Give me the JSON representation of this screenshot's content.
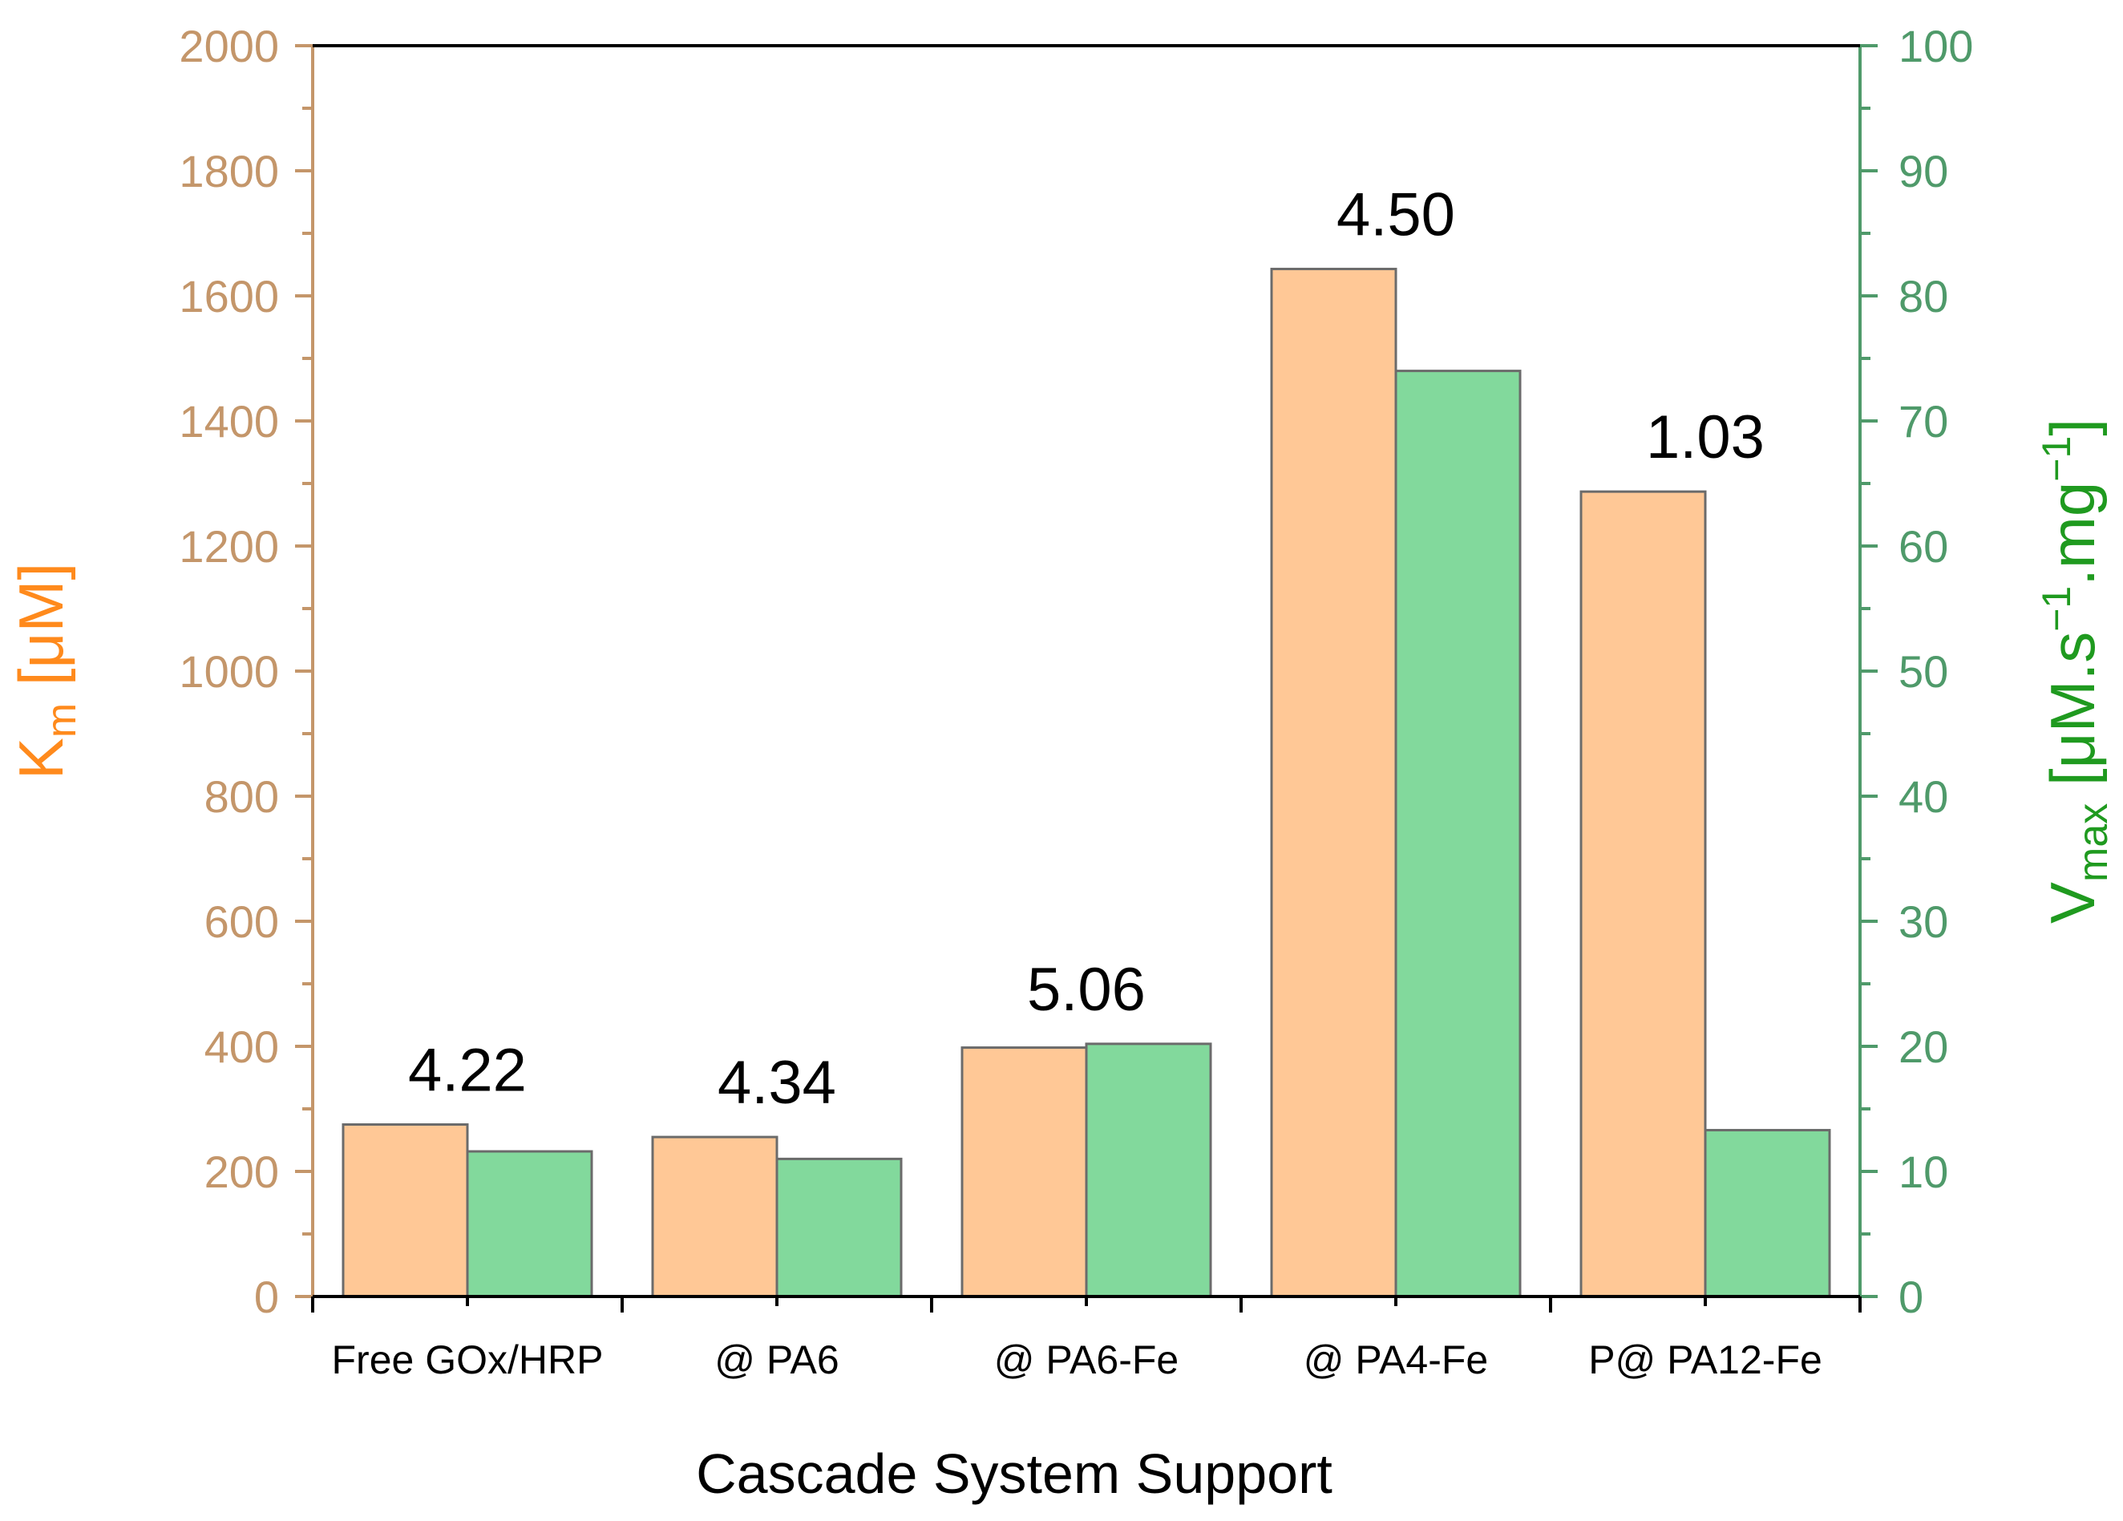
{
  "chart_data": {
    "type": "bar",
    "categories": [
      "Free GOx/HRP",
      "@ PA6",
      "@ PA6-Fe",
      "@ PA4-Fe",
      "P@ PA12-Fe"
    ],
    "series": [
      {
        "name": "Km",
        "axis": "left",
        "color": "#ffc896",
        "values": [
          275,
          255,
          398,
          1643,
          1287
        ]
      },
      {
        "name": "Vmax",
        "axis": "right",
        "color": "#82d99c",
        "values": [
          11.6,
          11.0,
          20.2,
          74.0,
          13.3
        ]
      }
    ],
    "annotations": [
      "4.22",
      "4.34",
      "5.06",
      "4.50",
      "1.03"
    ],
    "xlabel": "Cascade System Support",
    "ylabel_left": {
      "main": "K",
      "sub": "m",
      "rest": " [μM]"
    },
    "ylabel_right": {
      "main": "V",
      "sub": "max",
      "rest1": " [μM.s",
      "sup1": "−1",
      "rest2": ".mg",
      "sup2": "−1",
      "rest3": "]"
    },
    "ylim_left": [
      0,
      2000
    ],
    "ylim_right": [
      0,
      100
    ],
    "yticks_left": [
      "0",
      "200",
      "400",
      "600",
      "800",
      "1000",
      "1200",
      "1400",
      "1600",
      "1800",
      "2000"
    ],
    "yticks_right": [
      "0",
      "10",
      "20",
      "30",
      "40",
      "50",
      "60",
      "70",
      "80",
      "90",
      "100"
    ],
    "colors": {
      "left_axis": "#c4966a",
      "right_axis": "#4f9a6a",
      "left_title": "#ff8a1c",
      "right_title": "#1f9a1f",
      "bar_edge": "#6b6b6b"
    }
  }
}
